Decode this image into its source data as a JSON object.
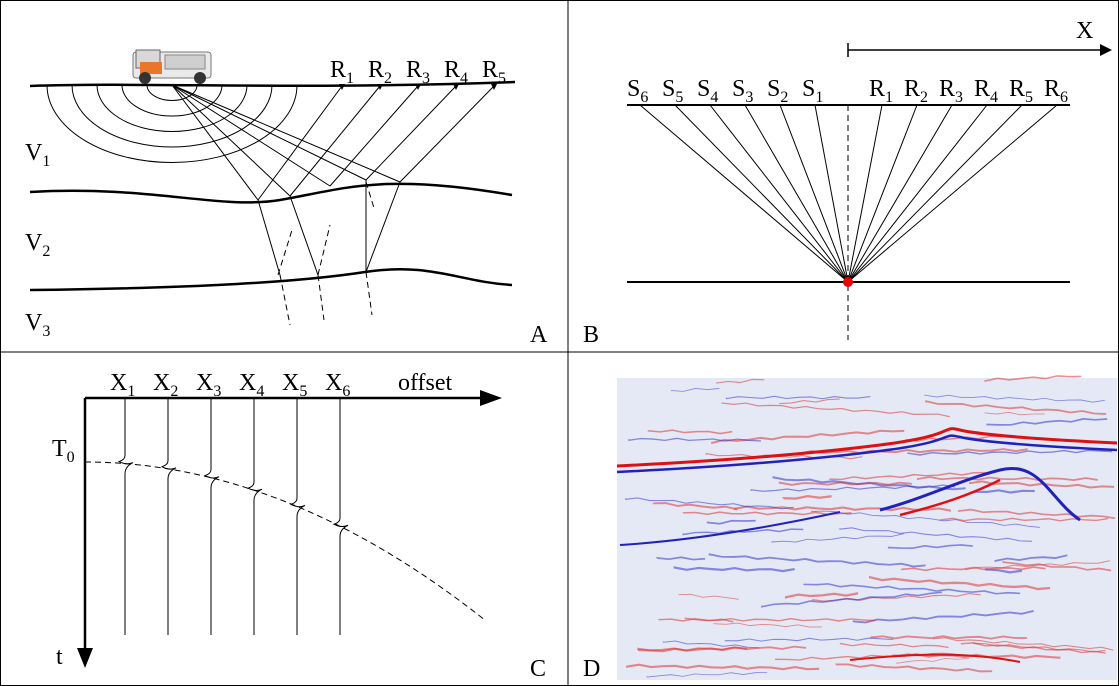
{
  "panels": {
    "A": {
      "label": "A",
      "layers": [
        {
          "text": "V",
          "sub": "1"
        },
        {
          "text": "V",
          "sub": "2"
        },
        {
          "text": "V",
          "sub": "3"
        }
      ],
      "receivers": [
        {
          "text": "R",
          "sub": "1"
        },
        {
          "text": "R",
          "sub": "2"
        },
        {
          "text": "R",
          "sub": "3"
        },
        {
          "text": "R",
          "sub": "4"
        },
        {
          "text": "R",
          "sub": "5"
        }
      ]
    },
    "B": {
      "label": "B",
      "axis": "X",
      "sources": [
        {
          "text": "S",
          "sub": "6"
        },
        {
          "text": "S",
          "sub": "5"
        },
        {
          "text": "S",
          "sub": "4"
        },
        {
          "text": "S",
          "sub": "3"
        },
        {
          "text": "S",
          "sub": "2"
        },
        {
          "text": "S",
          "sub": "1"
        }
      ],
      "receivers": [
        {
          "text": "R",
          "sub": "1"
        },
        {
          "text": "R",
          "sub": "2"
        },
        {
          "text": "R",
          "sub": "3"
        },
        {
          "text": "R",
          "sub": "4"
        },
        {
          "text": "R",
          "sub": "5"
        },
        {
          "text": "R",
          "sub": "6"
        }
      ]
    },
    "C": {
      "label": "C",
      "offsets": [
        {
          "text": "X",
          "sub": "1"
        },
        {
          "text": "X",
          "sub": "2"
        },
        {
          "text": "X",
          "sub": "3"
        },
        {
          "text": "X",
          "sub": "4"
        },
        {
          "text": "X",
          "sub": "5"
        },
        {
          "text": "X",
          "sub": "6"
        }
      ],
      "axis_x": "offset",
      "axis_y": "t",
      "t0": {
        "text": "T",
        "sub": "0"
      }
    },
    "D": {
      "label": "D"
    }
  }
}
